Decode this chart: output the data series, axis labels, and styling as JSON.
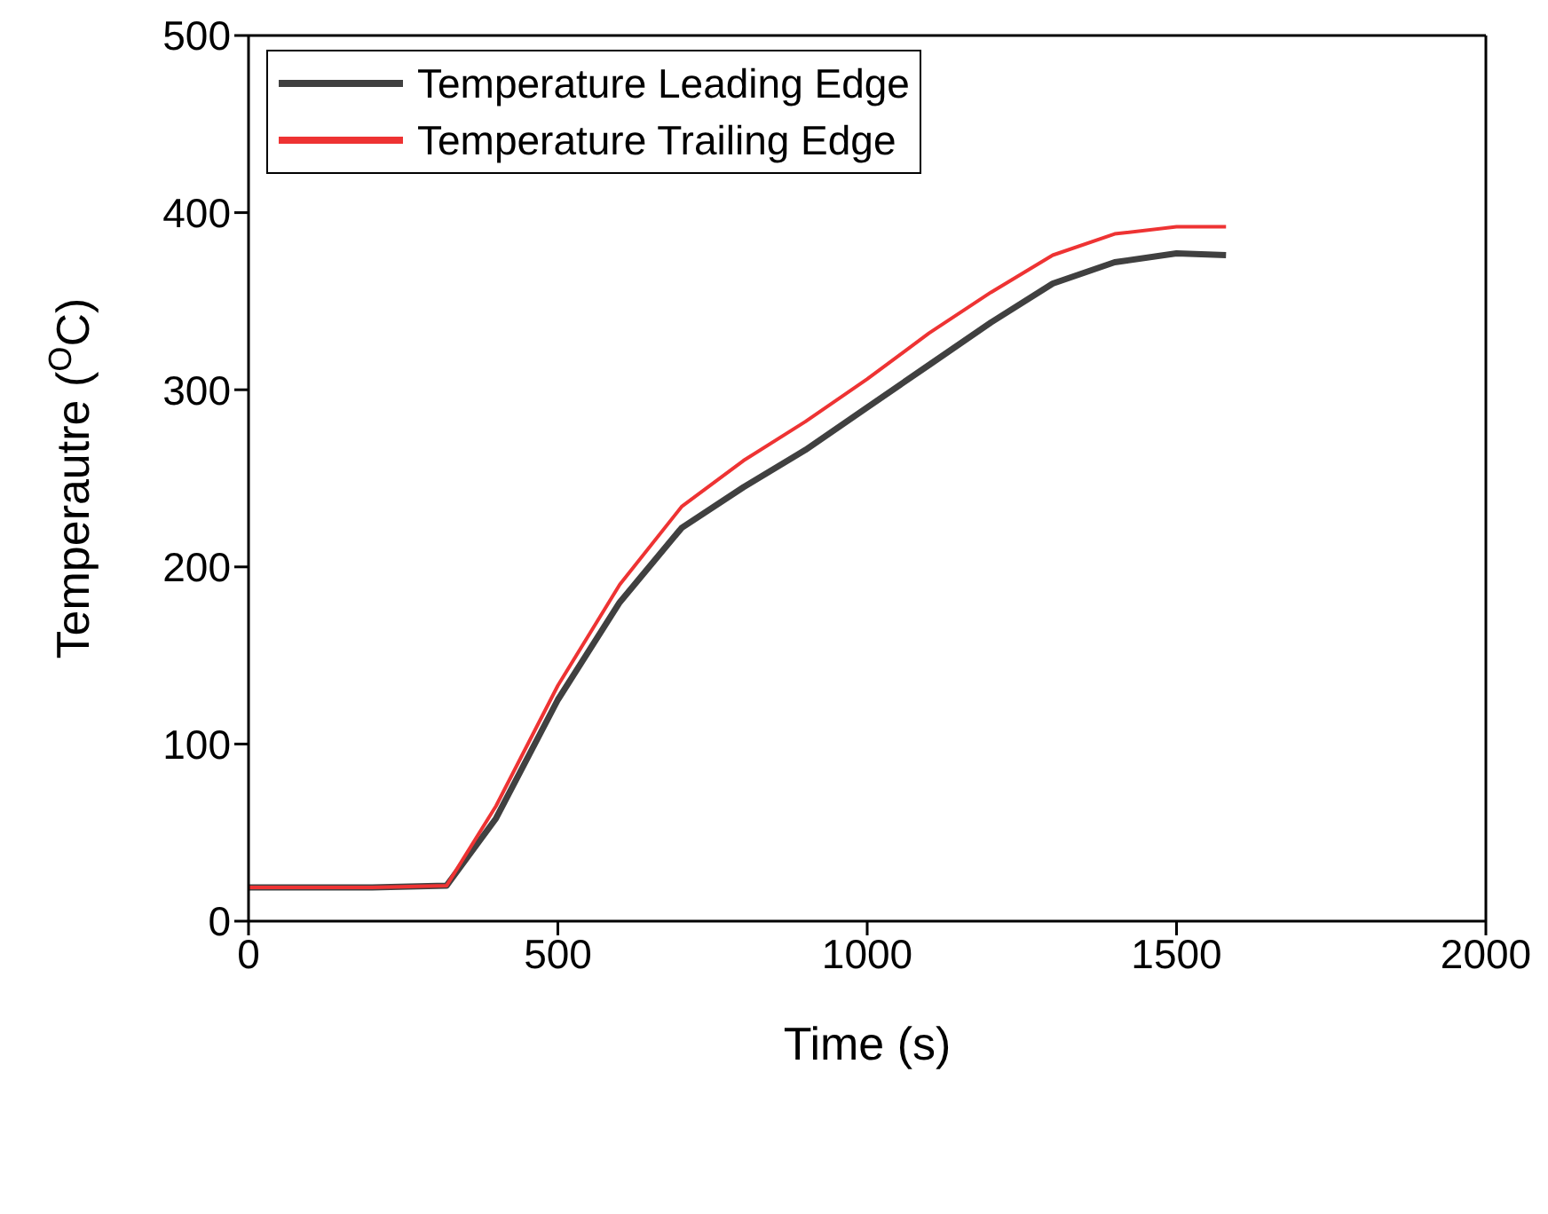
{
  "chart_data": {
    "type": "line",
    "xlabel": "Time (s)",
    "ylabel": "Temperautre ($^{O}$C)",
    "xlim": [
      0,
      2000
    ],
    "xticks": [
      0,
      500,
      1000,
      1500,
      2000
    ],
    "ylim": [
      0,
      500
    ],
    "yticks": [
      0,
      100,
      200,
      300,
      400,
      500
    ],
    "grid": false,
    "legend": "top left",
    "marker": "none",
    "line_style": "solid",
    "series": [
      {
        "name": "Temperature Leading Edge",
        "color": "#404040",
        "x": [
          0,
          100,
          200,
          320,
          400,
          500,
          600,
          700,
          800,
          900,
          1000,
          1100,
          1200,
          1300,
          1400,
          1500,
          1580
        ],
        "values": [
          19,
          19,
          19,
          20,
          58,
          125,
          180,
          222,
          245,
          266,
          290,
          314,
          338,
          360,
          372,
          377,
          376
        ]
      },
      {
        "name": "Temperature Trailing Edge",
        "color": "#ee3333",
        "x": [
          0,
          100,
          200,
          320,
          400,
          500,
          600,
          700,
          800,
          900,
          1000,
          1100,
          1200,
          1300,
          1400,
          1500,
          1580
        ],
        "values": [
          19,
          19,
          19,
          20,
          65,
          133,
          190,
          234,
          260,
          282,
          306,
          332,
          355,
          376,
          388,
          392,
          392
        ]
      }
    ]
  }
}
